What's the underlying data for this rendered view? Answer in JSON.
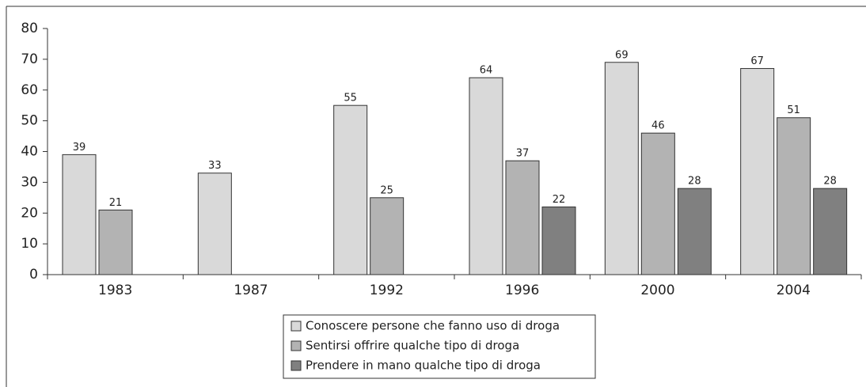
{
  "chart_data": {
    "type": "bar",
    "categories": [
      "1983",
      "1987",
      "1992",
      "1996",
      "2000",
      "2004"
    ],
    "series": [
      {
        "name": "Conoscere persone che fanno uso di droga",
        "color": "#d9d9d9",
        "values": [
          39,
          33,
          55,
          64,
          69,
          67
        ]
      },
      {
        "name": "Sentirsi offrire qualche tipo di droga",
        "color": "#b3b3b3",
        "values": [
          21,
          null,
          25,
          37,
          46,
          51
        ]
      },
      {
        "name": "Prendere in mano qualche tipo di droga",
        "color": "#808080",
        "values": [
          null,
          null,
          null,
          22,
          28,
          28
        ]
      }
    ],
    "ylim": [
      0,
      80
    ],
    "yticks": [
      0,
      10,
      20,
      30,
      40,
      50,
      60,
      70,
      80
    ]
  }
}
